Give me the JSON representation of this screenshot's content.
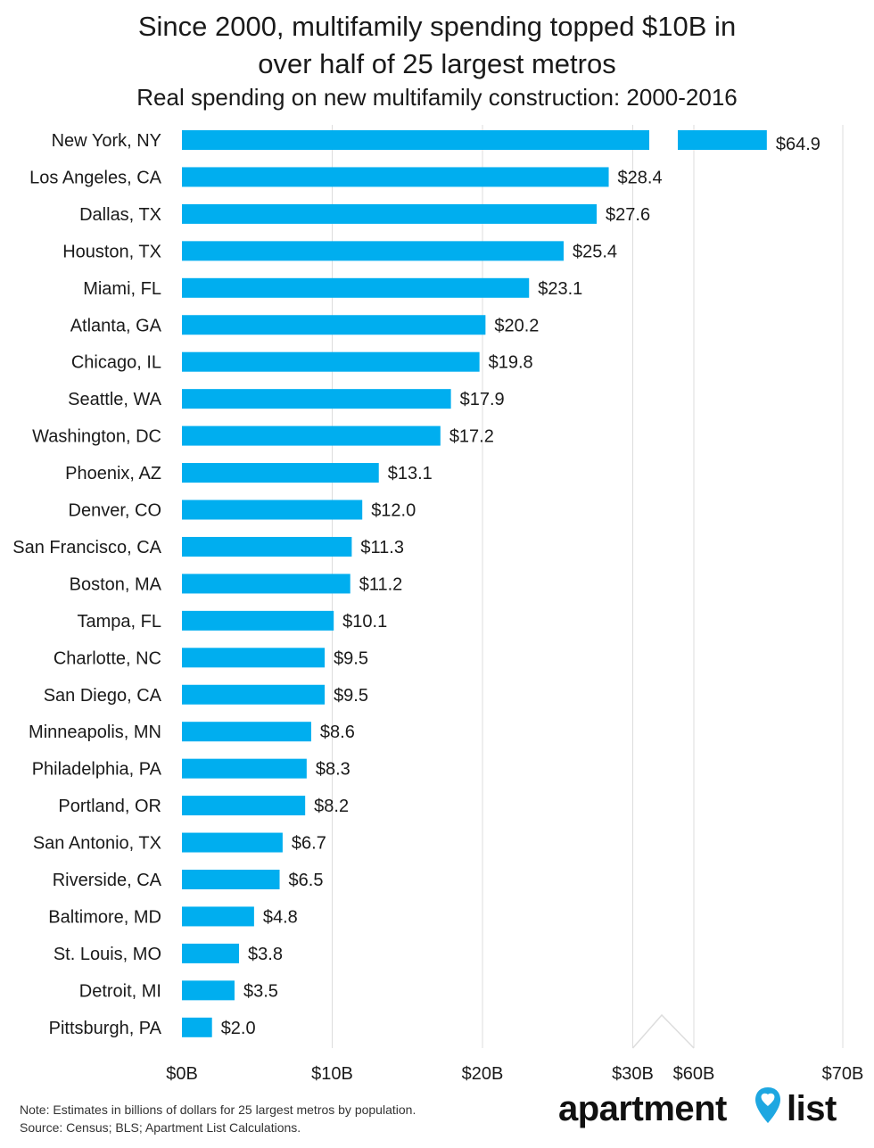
{
  "header": {
    "title_line1": "Since 2000, multifamily spending topped $10B in",
    "title_line2": "over half of 25 largest metros",
    "subtitle": "Real spending on new multifamily construction: 2000-2016"
  },
  "footer": {
    "note": "Note: Estimates in billions of dollars for 25 largest metros by population.",
    "source": "Source: Census; BLS; Apartment List Calculations.",
    "logo_word1": "apartment",
    "logo_word2": "list"
  },
  "colors": {
    "bar": "#00AEEF",
    "grid": "#dddddd",
    "text": "#1a1a1a",
    "logo_pin": "#1ea7e1"
  },
  "chart_data": {
    "type": "bar",
    "orientation": "horizontal",
    "categories": [
      "New York, NY",
      "Los Angeles, CA",
      "Dallas, TX",
      "Houston, TX",
      "Miami, FL",
      "Atlanta, GA",
      "Chicago, IL",
      "Seattle, WA",
      "Washington, DC",
      "Phoenix, AZ",
      "Denver, CO",
      "San Francisco, CA",
      "Boston, MA",
      "Tampa, FL",
      "Charlotte, NC",
      "San Diego, CA",
      "Minneapolis, MN",
      "Philadelphia, PA",
      "Portland, OR",
      "San Antonio, TX",
      "Riverside, CA",
      "Baltimore, MD",
      "St. Louis, MO",
      "Detroit, MI",
      "Pittsburgh, PA"
    ],
    "values": [
      64.9,
      28.4,
      27.6,
      25.4,
      23.1,
      20.2,
      19.8,
      17.9,
      17.2,
      13.1,
      12.0,
      11.3,
      11.2,
      10.1,
      9.5,
      9.5,
      8.6,
      8.3,
      8.2,
      6.7,
      6.5,
      4.8,
      3.8,
      3.5,
      2.0
    ],
    "value_labels": [
      "$64.9",
      "$28.4",
      "$27.6",
      "$25.4",
      "$23.1",
      "$20.2",
      "$19.8",
      "$17.9",
      "$17.2",
      "$13.1",
      "$12.0",
      "$11.3",
      "$11.2",
      "$10.1",
      "$9.5",
      "$9.5",
      "$8.6",
      "$8.3",
      "$8.2",
      "$6.7",
      "$6.5",
      "$4.8",
      "$3.8",
      "$3.5",
      "$2.0"
    ],
    "axis_break": [
      30,
      60
    ],
    "xlim": [
      0,
      70
    ],
    "x_ticks": [
      0,
      10,
      20,
      30,
      60,
      70
    ],
    "x_tick_labels": [
      "$0B",
      "$10B",
      "$20B",
      "$30B",
      "$60B",
      "$70B"
    ],
    "grid": true
  }
}
